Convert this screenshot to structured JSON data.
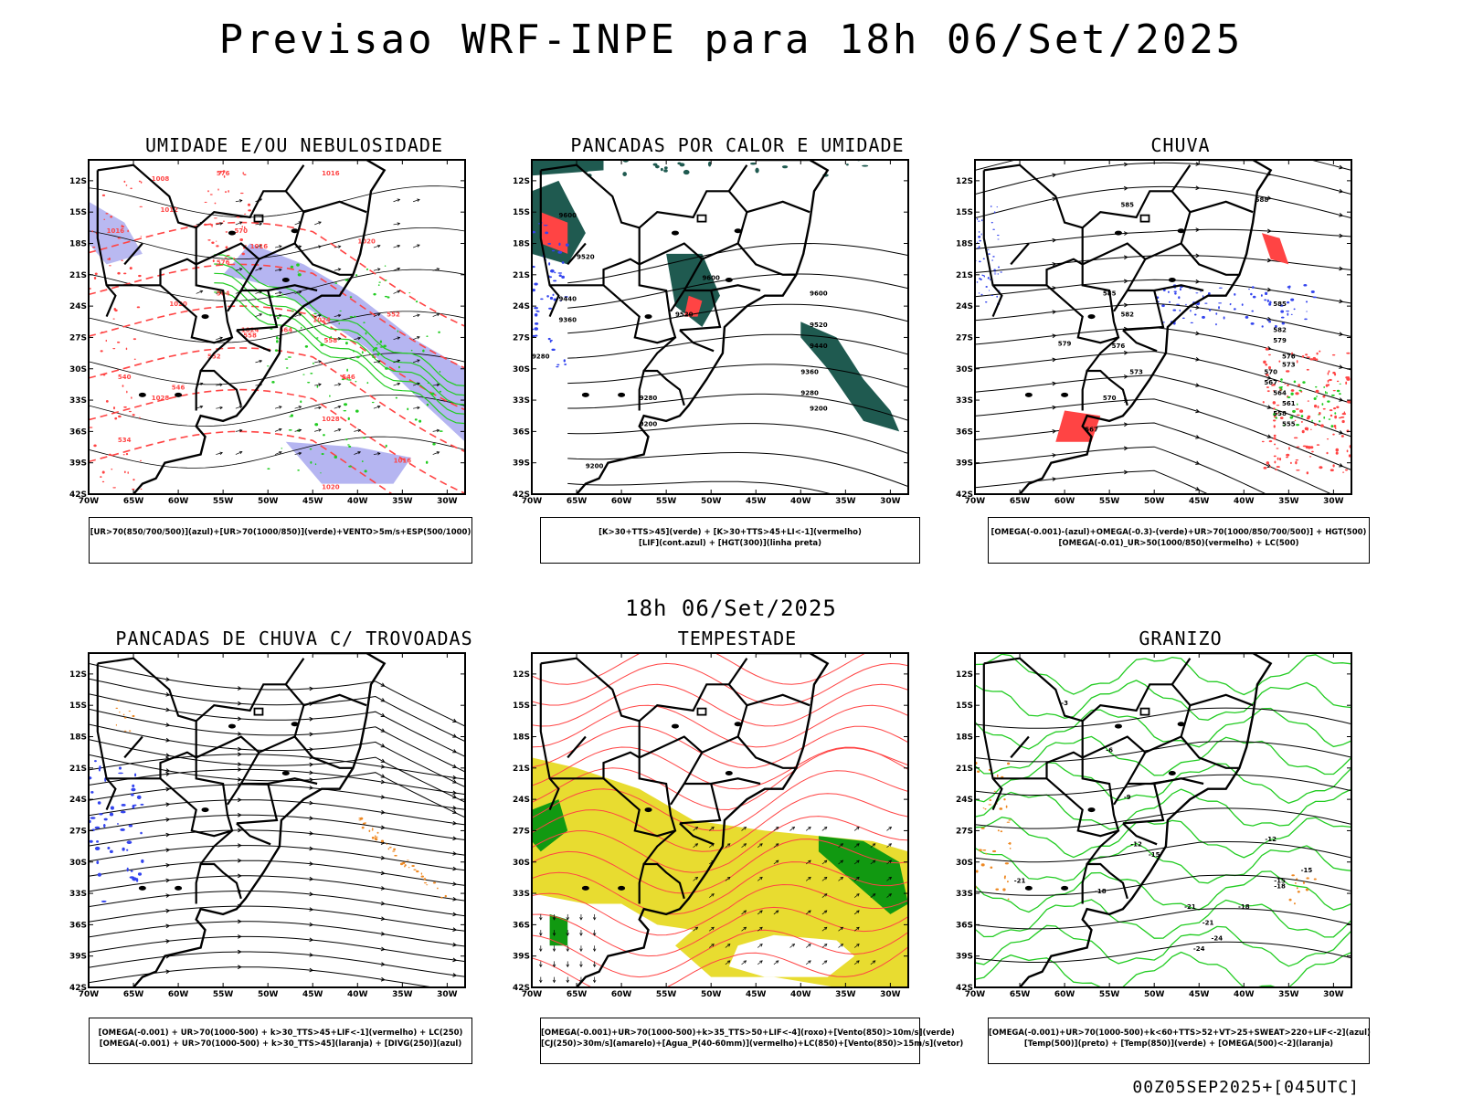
{
  "title": "Previsao WRF-INPE  para 18h 06/Set/2025",
  "subtitle": "18h 06/Set/2025",
  "footer": "00Z05SEP2025+[045UTC]",
  "axes": {
    "lat_labels": [
      "12S",
      "15S",
      "18S",
      "21S",
      "24S",
      "27S",
      "30S",
      "33S",
      "36S",
      "39S",
      "42S"
    ],
    "lon_labels": [
      "70W",
      "65W",
      "60W",
      "55W",
      "50W",
      "45W",
      "40W",
      "35W",
      "30W"
    ]
  },
  "colors": {
    "green": "#22cc22",
    "red": "#ff4444",
    "blue": "#3344ee",
    "lavender": "#a8a8ee",
    "teal": "#1f5a50",
    "yellow": "#e8dc30",
    "orange": "#ee8822",
    "dark_green": "#119911"
  },
  "panels": [
    {
      "title": "UMIDADE E/OU NEBULOSIDADE",
      "legend": [
        "[UR>70(850/700/500)](azul)+[UR>70(1000/850)](verde)+VENTO>5m/s+ESP(500/1000)"
      ],
      "labels": [
        "1008",
        "1012",
        "1016",
        "1016",
        "1016",
        "1020",
        "1020",
        "1024",
        "1024",
        "1028",
        "1028",
        "1016",
        "1020",
        "576",
        "570",
        "576",
        "564",
        "558",
        "552",
        "546",
        "540",
        "534",
        "552",
        "546",
        "558",
        "564"
      ]
    },
    {
      "title": "PANCADAS POR CALOR E UMIDADE",
      "legend": [
        "[K>30+TTS>45](verde) + [K>30+TTS>45+LI<-1](vermelho)",
        "[LIF](cont.azul) + [HGT(300)](linha preta)"
      ],
      "labels": [
        "9600",
        "9520",
        "9440",
        "9360",
        "9280",
        "9200",
        "9600",
        "9520",
        "9440",
        "9360",
        "9280",
        "9200",
        "9600",
        "9520",
        "9280",
        "9200"
      ]
    },
    {
      "title": "CHUVA",
      "legend": [
        "[OMEGA(-0.001)-(azul)+OMEGA(-0.3)-(verde)+UR>70(1000/850/700/500)] + HGT(500)",
        "[OMEGA(-0.01)_UR>50(1000/850)(vermelho) + LC(500)"
      ],
      "labels": [
        "585",
        "588",
        "585",
        "582",
        "579",
        "576",
        "573",
        "570",
        "567",
        "585",
        "582",
        "579",
        "576",
        "573",
        "570",
        "567",
        "564",
        "561",
        "558",
        "555"
      ]
    },
    {
      "title": "PANCADAS DE CHUVA C/ TROVOADAS",
      "legend": [
        "[OMEGA(-0.001) + UR>70(1000-500) + k>30_TTS>45+LIF<-1](vermelho) + LC(250)",
        "[OMEGA(-0.001) + UR>70(1000-500) + k>30_TTS>45](laranja) + [DIVG(250)](azul)"
      ],
      "labels": []
    },
    {
      "title": "TEMPESTADE",
      "legend": [
        "[OMEGA(-0.001)+UR>70(1000-500)+k>35_TTS>50+LIF<-4](roxo)+[Vento(850)>10m/s](verde)",
        "[CJ(250)>30m/s](amarelo)+[Agua_P(40-60mm)](vermelho)+LC(850)+[Vento(850)>15m/s](vetor)"
      ],
      "labels": []
    },
    {
      "title": "GRANIZO",
      "legend": [
        "[OMEGA(-0.001)+UR>70(1000-500)+k<60+TTS>52+VT>25+SWEAT>220+LIF<-2](azul)",
        "[Temp(500)](preto) + [Temp(850)](verde) + [OMEGA(500)<-2](laranja)"
      ],
      "labels": [
        "-3",
        "-6",
        "-9",
        "-12",
        "-15",
        "-18",
        "-21",
        "-24",
        "-12",
        "-15",
        "-18",
        "-21",
        "-24",
        "-15",
        "-18",
        "-21"
      ]
    }
  ]
}
